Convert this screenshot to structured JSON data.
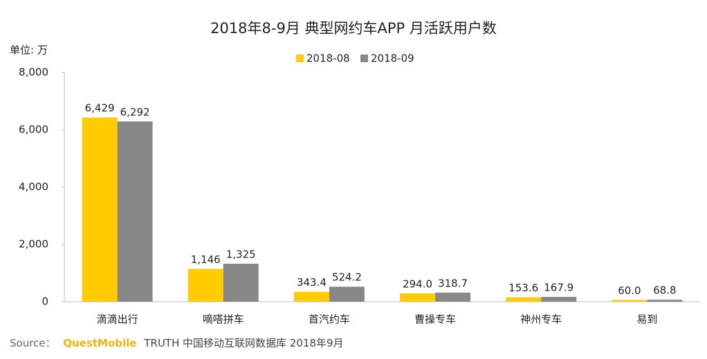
{
  "chart_data": {
    "type": "bar",
    "title": "2018年8-9月 典型网约车APP 月活跃用户数",
    "unit_label": "单位: 万",
    "categories": [
      "滴滴出行",
      "嘀嗒拼车",
      "首汽约车",
      "曹操专车",
      "神州专车",
      "易到"
    ],
    "series": [
      {
        "name": "2018-08",
        "color": "#FFCC00",
        "values": [
          6429,
          1146,
          343.4,
          294.0,
          153.6,
          60.0
        ],
        "value_labels": [
          "6,429",
          "1,146",
          "343.4",
          "294.0",
          "153.6",
          "60.0"
        ]
      },
      {
        "name": "2018-09",
        "color": "#888888",
        "values": [
          6292,
          1325,
          524.2,
          318.7,
          167.9,
          68.8
        ],
        "value_labels": [
          "6,292",
          "1,325",
          "524.2",
          "318.7",
          "167.9",
          "68.8"
        ]
      }
    ],
    "ylim": [
      0,
      8000
    ],
    "yticks": [
      0,
      {
        "value": 2000,
        "label": "2,000"
      },
      {
        "value": 4000,
        "label": "4,000"
      },
      {
        "value": 6000,
        "label": "6,000"
      },
      {
        "value": 8000,
        "label": "8,000"
      }
    ],
    "grid": false,
    "legend": "top",
    "source": {
      "prefix": "Source：",
      "brand": "QuestMobile",
      "text": "TRUTH 中国移动互联网数据库 2018年9月"
    }
  }
}
